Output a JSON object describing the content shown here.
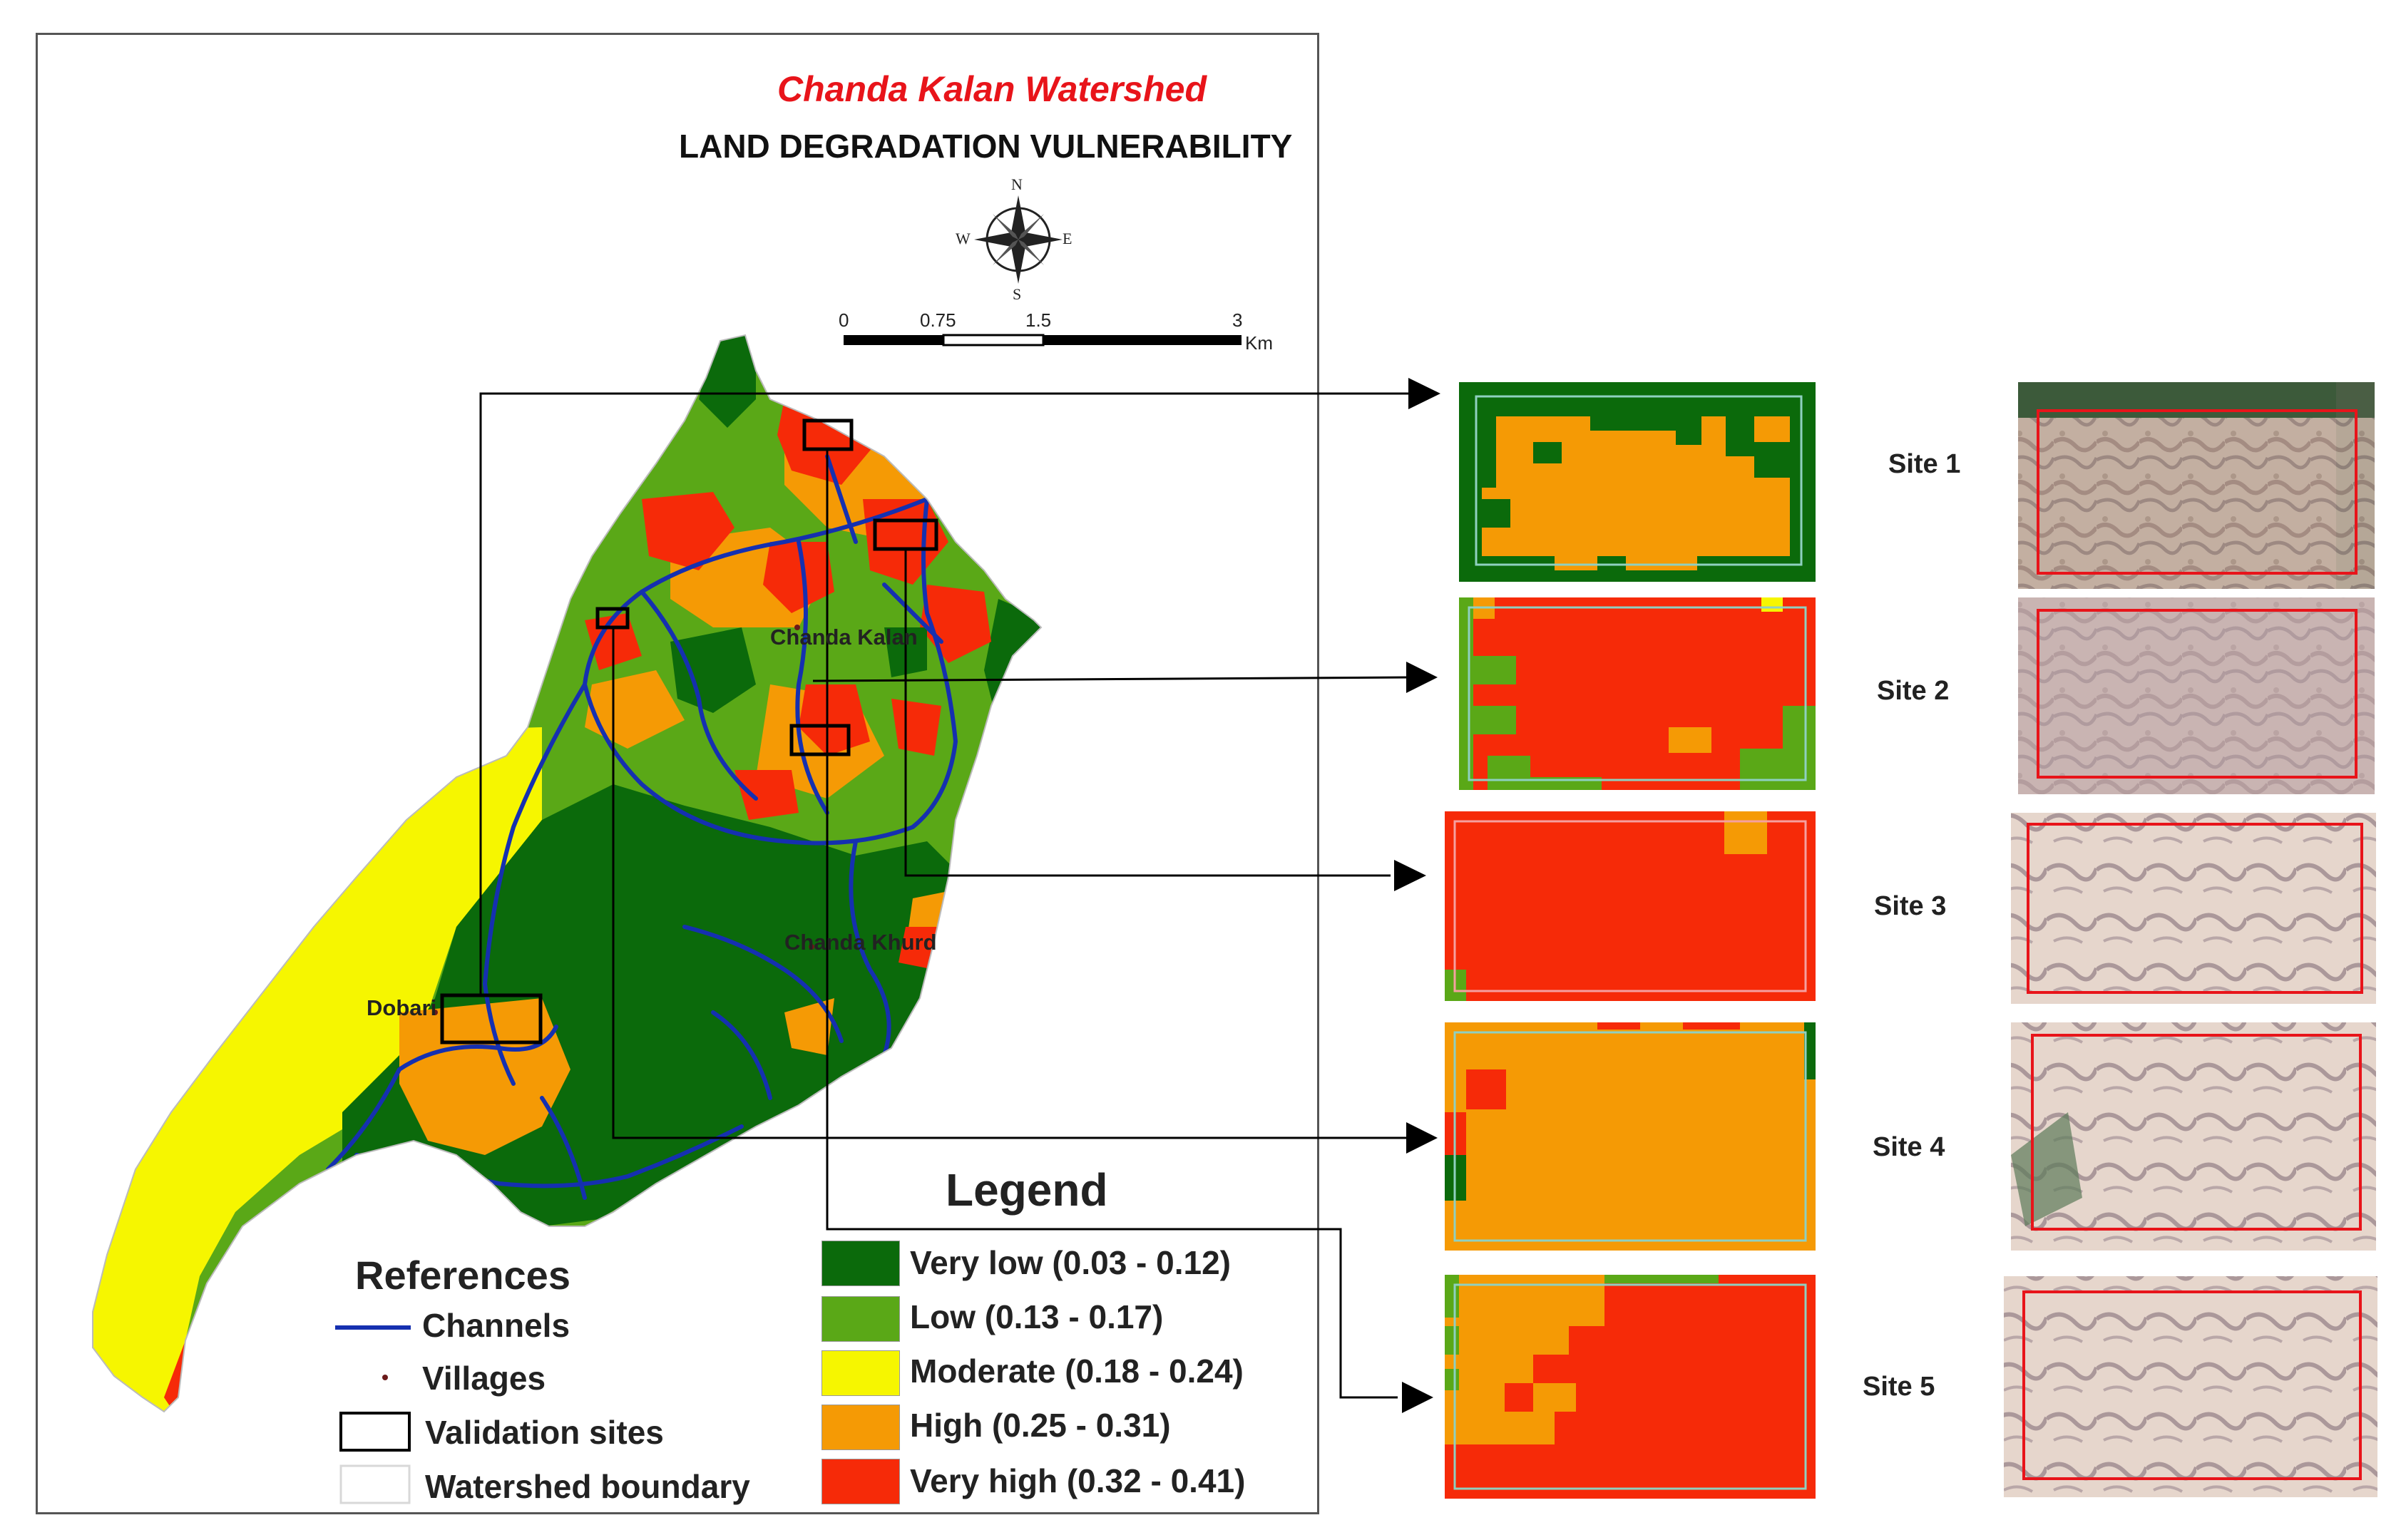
{
  "map": {
    "title": "Chanda Kalan Watershed",
    "subtitle": "LAND DEGRADATION VULNERABILITY",
    "compass": {
      "n": "N",
      "s": "S",
      "e": "E",
      "w": "W"
    },
    "scale": {
      "ticks": [
        "0",
        "0.75",
        "1.5",
        "3"
      ],
      "unit": "Km"
    },
    "villages": [
      "Chanda Kalan",
      "Chanda Khurd",
      "Dobari"
    ]
  },
  "references": {
    "title": "References",
    "items": [
      "Channels",
      "Villages",
      "Validation sites",
      "Watershed boundary"
    ]
  },
  "legend": {
    "title": "Legend",
    "classes": [
      {
        "label": "Very low (0.03 - 0.12)",
        "color": "#0b6a0b"
      },
      {
        "label": "Low (0.13 - 0.17)",
        "color": "#5aa817"
      },
      {
        "label": "Moderate (0.18 - 0.24)",
        "color": "#f6f600"
      },
      {
        "label": "High (0.25 - 0.31)",
        "color": "#f59a05"
      },
      {
        "label": "Very high (0.32 - 0.41)",
        "color": "#f62a08"
      }
    ]
  },
  "sites": [
    {
      "label": "Site 1"
    },
    {
      "label": "Site 2"
    },
    {
      "label": "Site 3"
    },
    {
      "label": "Site 4"
    },
    {
      "label": "Site 5"
    }
  ],
  "colors": {
    "channel": "#1530b0",
    "site_box": "#000000",
    "imagery_box": "#e8141a",
    "boundary": "#8fd0c0"
  }
}
